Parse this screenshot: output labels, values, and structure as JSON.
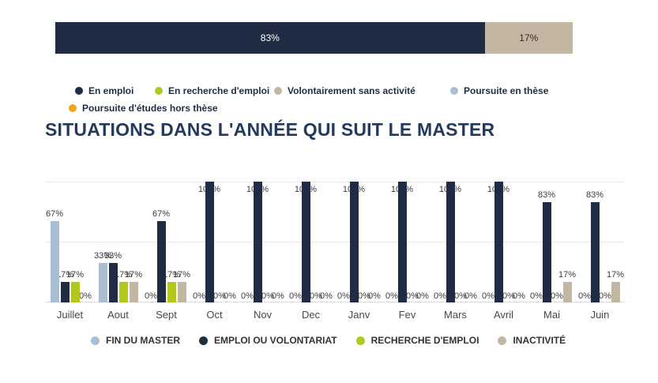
{
  "title": "SITUATIONS DANS L'ANNÉE QUI SUIT LE MASTER",
  "top_legend": {
    "items": [
      {
        "label": "En emploi",
        "color": "#1f2c44"
      },
      {
        "label": "En recherche d'emploi",
        "color": "#b2c81c"
      },
      {
        "label": "Volontairement sans activité",
        "color": "#c3b7a4"
      },
      {
        "label": "Poursuite en thèse",
        "color": "#a9bdd3"
      },
      {
        "label": "Poursuite d'études hors thèse",
        "color": "#f2a516"
      }
    ]
  },
  "chart_data": [
    {
      "type": "bar",
      "orientation": "horizontal",
      "stacked": true,
      "xlim": [
        0,
        100
      ],
      "segments": [
        {
          "name": "En emploi",
          "value": 83,
          "label": "83%",
          "color": "#1f2c44",
          "label_color": "#ffffff"
        },
        {
          "name": "Volontairement sans activité",
          "value": 17,
          "label": "17%",
          "color": "#c3b7a4",
          "label_color": "#2e2e2e"
        }
      ]
    },
    {
      "type": "bar",
      "title": "SITUATIONS DANS L'ANNÉE QUI SUIT LE MASTER",
      "categories": [
        "Juillet",
        "Aout",
        "Sept",
        "Oct",
        "Nov",
        "Dec",
        "Janv",
        "Fev",
        "Mars",
        "Avril",
        "Mai",
        "Juin"
      ],
      "series": [
        {
          "name": "FIN DU MASTER",
          "color": "#a9bdd3",
          "values": [
            67,
            33,
            0,
            0,
            0,
            0,
            0,
            0,
            0,
            0,
            0,
            0
          ]
        },
        {
          "name": "EMPLOI OU VOLONTARIAT",
          "color": "#1f2c44",
          "values": [
            17,
            33,
            67,
            100,
            100,
            100,
            100,
            100,
            100,
            100,
            83,
            83
          ]
        },
        {
          "name": "RECHERCHE D'EMPLOI",
          "color": "#b2c81c",
          "values": [
            17,
            17,
            17,
            0,
            0,
            0,
            0,
            0,
            0,
            0,
            0,
            0
          ]
        },
        {
          "name": "INACTIVITÉ",
          "color": "#c3b7a4",
          "values": [
            0,
            17,
            17,
            0,
            0,
            0,
            0,
            0,
            0,
            0,
            17,
            17
          ]
        }
      ],
      "ylim": [
        0,
        100
      ],
      "gridlines_pct": [
        0,
        50,
        100
      ],
      "value_label_suffix": "%",
      "legend_position": "bottom",
      "grid": "horizontal"
    }
  ]
}
